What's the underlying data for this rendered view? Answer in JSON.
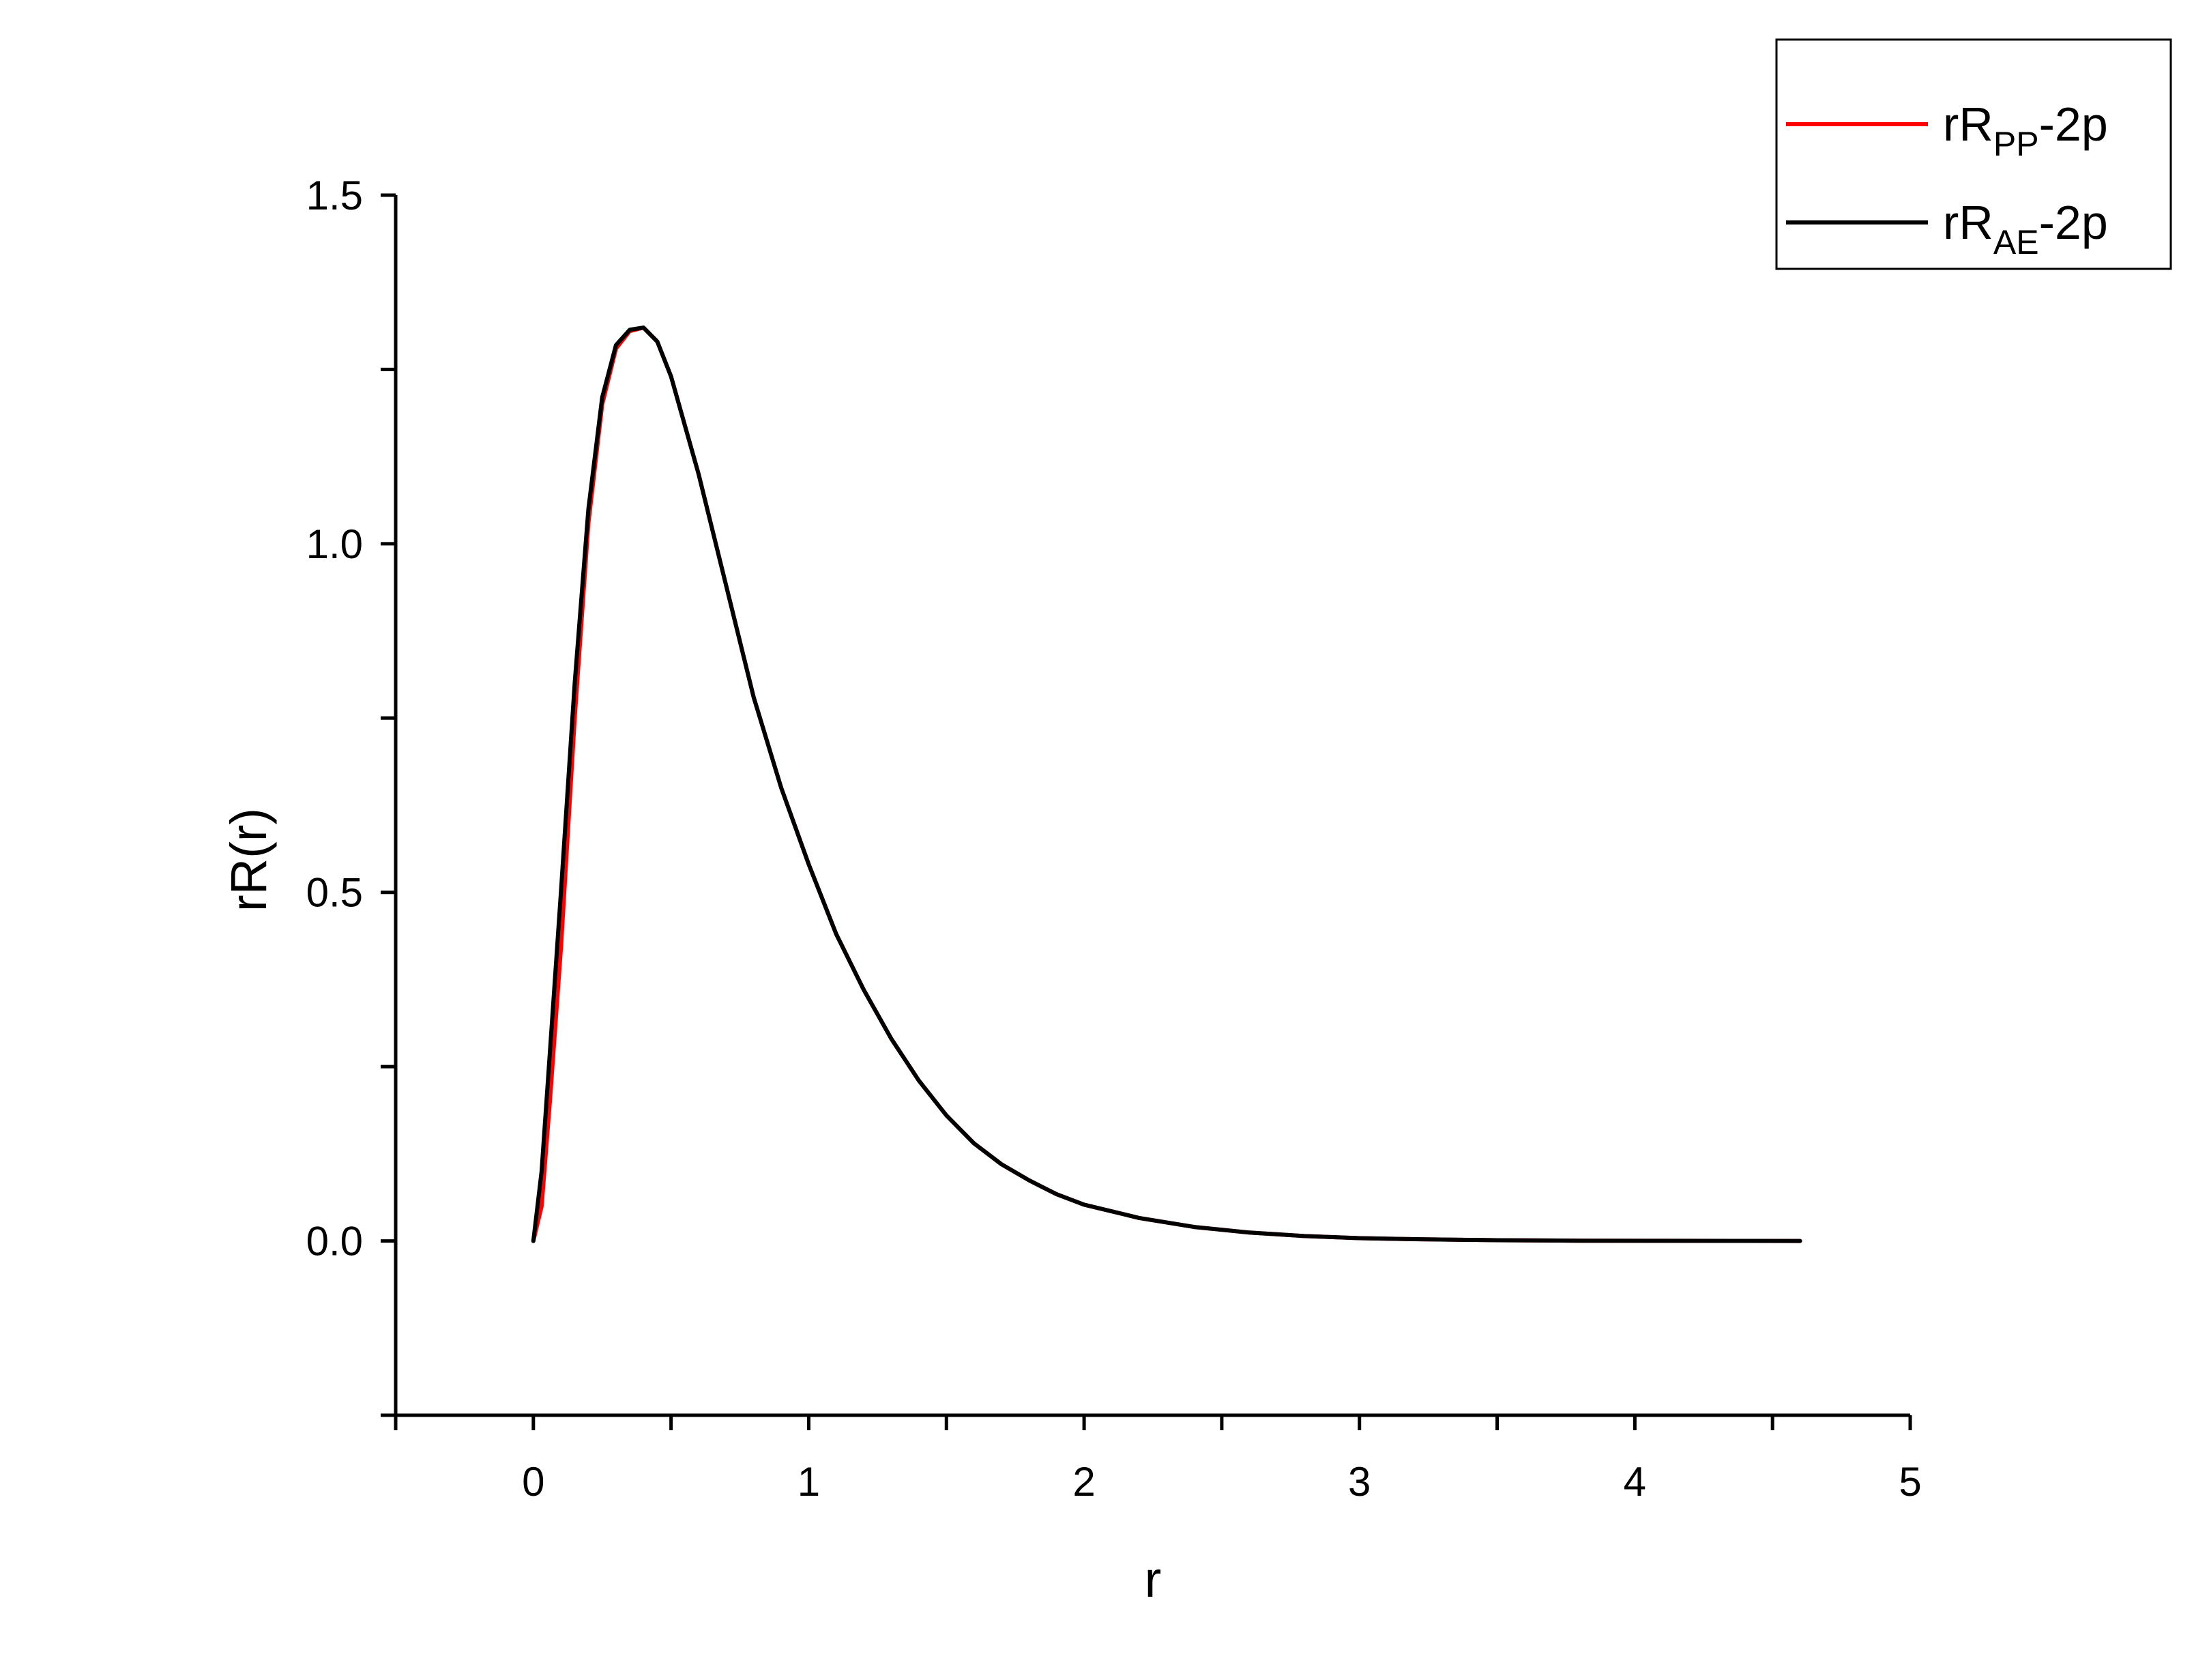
{
  "chart_data": {
    "type": "line",
    "xlabel": "r",
    "ylabel": "rR(r)",
    "xlim": [
      -0.5,
      5
    ],
    "ylim": [
      -0.25,
      1.5
    ],
    "xticks": [
      0,
      1,
      2,
      3,
      4,
      5
    ],
    "xtick_labels": [
      "0",
      "1",
      "2",
      "3",
      "4",
      "5"
    ],
    "yticks": [
      0.0,
      0.5,
      1.0,
      1.5
    ],
    "ytick_labels": [
      "0.0",
      "0.5",
      "1.0",
      "1.5"
    ],
    "grid": false,
    "legend_position": "top-right",
    "series": [
      {
        "name": "rR",
        "name_sub": "PP",
        "name_suffix": "-2p",
        "color": "#ff0000",
        "x": [
          0,
          0.03,
          0.06,
          0.1,
          0.15,
          0.2,
          0.25,
          0.3,
          0.35,
          0.4,
          0.45,
          0.5,
          0.6,
          0.7,
          0.8,
          0.9,
          1.0,
          1.1,
          1.2,
          1.3,
          1.4,
          1.5,
          1.6,
          1.7,
          1.8,
          1.9,
          2.0,
          2.2,
          2.4,
          2.6,
          2.8,
          3.0,
          3.2,
          3.5,
          3.8,
          4.1,
          4.4,
          4.6
        ],
        "y": [
          0.0,
          0.05,
          0.2,
          0.42,
          0.75,
          1.03,
          1.2,
          1.28,
          1.305,
          1.31,
          1.29,
          1.24,
          1.1,
          0.94,
          0.78,
          0.65,
          0.54,
          0.44,
          0.36,
          0.29,
          0.23,
          0.18,
          0.14,
          0.11,
          0.087,
          0.067,
          0.052,
          0.033,
          0.02,
          0.012,
          0.007,
          0.004,
          0.0025,
          0.001,
          0.0004,
          0.0002,
          0.0001,
          0.0
        ]
      },
      {
        "name": "rR",
        "name_sub": "AE",
        "name_suffix": "-2p",
        "color": "#000000",
        "x": [
          0,
          0.03,
          0.06,
          0.1,
          0.15,
          0.2,
          0.25,
          0.3,
          0.35,
          0.4,
          0.45,
          0.5,
          0.6,
          0.7,
          0.8,
          0.9,
          1.0,
          1.1,
          1.2,
          1.3,
          1.4,
          1.5,
          1.6,
          1.7,
          1.8,
          1.9,
          2.0,
          2.2,
          2.4,
          2.6,
          2.8,
          3.0,
          3.2,
          3.5,
          3.8,
          4.1,
          4.4,
          4.6
        ],
        "y": [
          0.0,
          0.1,
          0.27,
          0.5,
          0.8,
          1.05,
          1.21,
          1.285,
          1.307,
          1.31,
          1.29,
          1.24,
          1.1,
          0.94,
          0.78,
          0.65,
          0.54,
          0.44,
          0.36,
          0.29,
          0.23,
          0.18,
          0.14,
          0.11,
          0.087,
          0.067,
          0.052,
          0.033,
          0.02,
          0.012,
          0.007,
          0.004,
          0.0025,
          0.001,
          0.0004,
          0.0002,
          0.0001,
          0.0
        ]
      }
    ]
  }
}
